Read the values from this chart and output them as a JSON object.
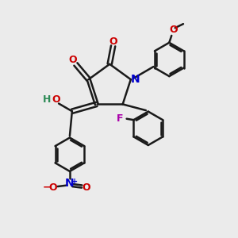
{
  "background_color": "#ebebeb",
  "bond_color": "#1a1a1a",
  "oxygen_color": "#cc0000",
  "nitrogen_color": "#0000cc",
  "fluorine_color": "#aa00aa",
  "hydrogen_color": "#2e8b57",
  "xlim": [
    0,
    10
  ],
  "ylim": [
    0,
    10
  ],
  "ring_lw": 1.8,
  "bond_lw": 1.8,
  "dbl_sep": 0.09,
  "font_size": 9
}
